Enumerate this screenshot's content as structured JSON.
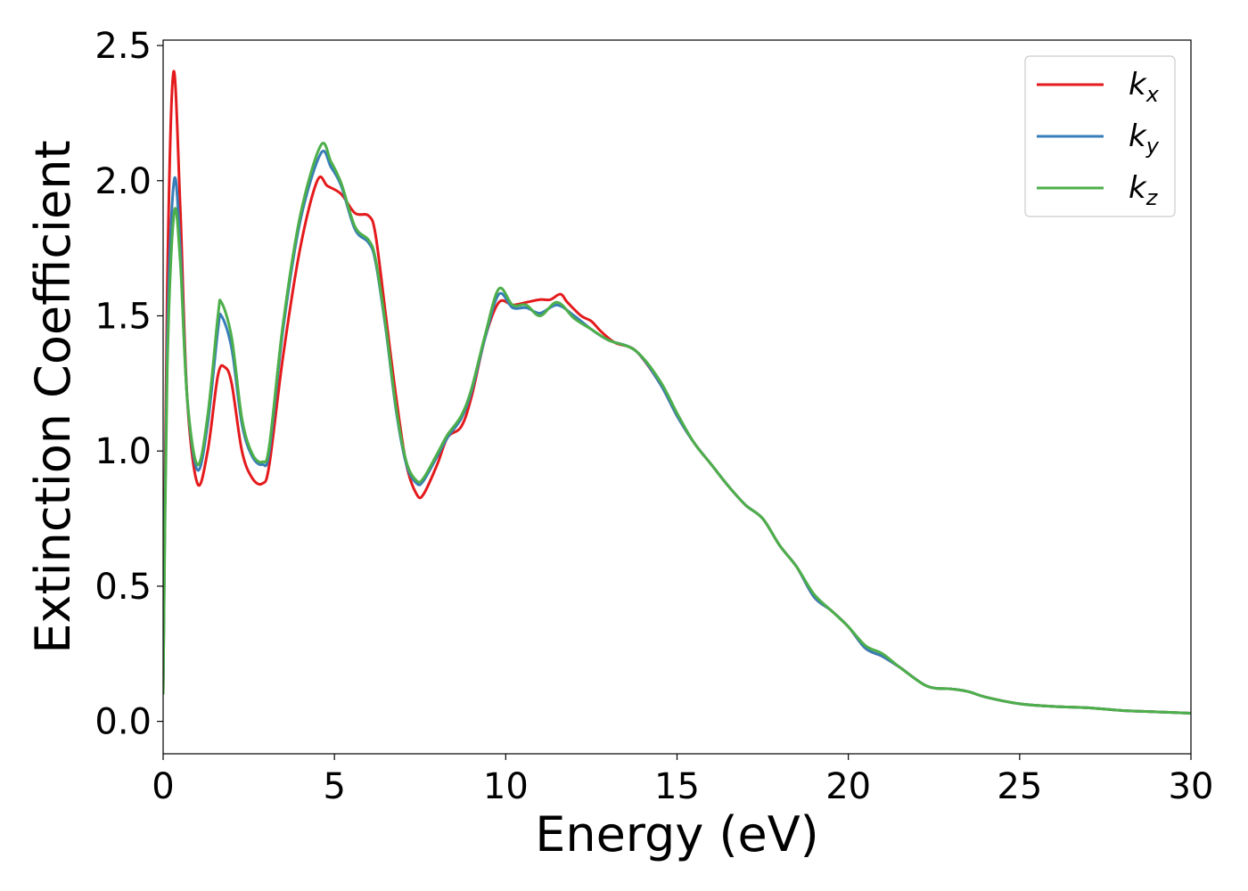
{
  "chart_data": {
    "type": "line",
    "title": "",
    "xlabel": "Energy (eV)",
    "ylabel": "Extinction Coefficient",
    "xlim": [
      0,
      30
    ],
    "ylim": [
      -0.12,
      2.52
    ],
    "xticks": [
      0,
      5,
      10,
      15,
      20,
      25,
      30
    ],
    "xtick_labels": [
      "0",
      "5",
      "10",
      "15",
      "20",
      "25",
      "30"
    ],
    "yticks": [
      0.0,
      0.5,
      1.0,
      1.5,
      2.0,
      2.5
    ],
    "ytick_labels": [
      "0.0",
      "0.5",
      "1.0",
      "1.5",
      "2.0",
      "2.5"
    ],
    "grid": false,
    "legend_position": "top-right",
    "series": [
      {
        "legend_base": "k",
        "legend_sub": "x",
        "color": "#e41a1c",
        "points": [
          [
            0,
            0.1
          ],
          [
            0.12,
            1.6
          ],
          [
            0.3,
            2.4
          ],
          [
            0.5,
            1.9
          ],
          [
            0.7,
            1.2
          ],
          [
            1.0,
            0.88
          ],
          [
            1.3,
            1.0
          ],
          [
            1.6,
            1.28
          ],
          [
            1.8,
            1.31
          ],
          [
            2.0,
            1.25
          ],
          [
            2.3,
            1.0
          ],
          [
            2.6,
            0.9
          ],
          [
            2.9,
            0.88
          ],
          [
            3.1,
            0.95
          ],
          [
            3.5,
            1.35
          ],
          [
            4.0,
            1.75
          ],
          [
            4.5,
            2.0
          ],
          [
            4.8,
            1.98
          ],
          [
            5.2,
            1.95
          ],
          [
            5.6,
            1.88
          ],
          [
            6.0,
            1.87
          ],
          [
            6.2,
            1.8
          ],
          [
            6.5,
            1.5
          ],
          [
            6.8,
            1.2
          ],
          [
            7.1,
            0.95
          ],
          [
            7.4,
            0.84
          ],
          [
            7.6,
            0.84
          ],
          [
            8.0,
            0.95
          ],
          [
            8.3,
            1.05
          ],
          [
            8.7,
            1.09
          ],
          [
            9.0,
            1.2
          ],
          [
            9.4,
            1.42
          ],
          [
            9.8,
            1.55
          ],
          [
            10.2,
            1.54
          ],
          [
            10.6,
            1.55
          ],
          [
            11.0,
            1.56
          ],
          [
            11.3,
            1.56
          ],
          [
            11.6,
            1.58
          ],
          [
            11.8,
            1.55
          ],
          [
            12.2,
            1.5
          ],
          [
            12.5,
            1.48
          ],
          [
            12.8,
            1.44
          ],
          [
            13.2,
            1.4
          ],
          [
            13.8,
            1.37
          ],
          [
            14.5,
            1.25
          ],
          [
            15.0,
            1.13
          ],
          [
            15.5,
            1.03
          ],
          [
            16.0,
            0.95
          ],
          [
            16.5,
            0.87
          ],
          [
            17.0,
            0.8
          ],
          [
            17.5,
            0.75
          ],
          [
            18.0,
            0.65
          ],
          [
            18.5,
            0.57
          ],
          [
            19.0,
            0.46
          ],
          [
            19.5,
            0.41
          ],
          [
            20.0,
            0.35
          ],
          [
            20.5,
            0.27
          ],
          [
            21.0,
            0.24
          ],
          [
            21.5,
            0.2
          ],
          [
            22.3,
            0.13
          ],
          [
            23.0,
            0.12
          ],
          [
            23.5,
            0.11
          ],
          [
            24.0,
            0.09
          ],
          [
            25.0,
            0.065
          ],
          [
            26.0,
            0.055
          ],
          [
            27.0,
            0.05
          ],
          [
            28.0,
            0.04
          ],
          [
            29.0,
            0.035
          ],
          [
            30.0,
            0.03
          ]
        ]
      },
      {
        "legend_base": "k",
        "legend_sub": "y",
        "color": "#377eb8",
        "points": [
          [
            0,
            0.1
          ],
          [
            0.12,
            1.4
          ],
          [
            0.32,
            2.0
          ],
          [
            0.5,
            1.75
          ],
          [
            0.7,
            1.2
          ],
          [
            1.0,
            0.93
          ],
          [
            1.3,
            1.1
          ],
          [
            1.6,
            1.45
          ],
          [
            1.7,
            1.5
          ],
          [
            2.0,
            1.38
          ],
          [
            2.3,
            1.1
          ],
          [
            2.6,
            0.98
          ],
          [
            2.9,
            0.95
          ],
          [
            3.1,
            1.0
          ],
          [
            3.5,
            1.45
          ],
          [
            4.0,
            1.85
          ],
          [
            4.6,
            2.1
          ],
          [
            4.9,
            2.05
          ],
          [
            5.2,
            1.98
          ],
          [
            5.6,
            1.82
          ],
          [
            6.0,
            1.77
          ],
          [
            6.2,
            1.7
          ],
          [
            6.5,
            1.45
          ],
          [
            6.8,
            1.15
          ],
          [
            7.1,
            0.95
          ],
          [
            7.4,
            0.88
          ],
          [
            7.6,
            0.89
          ],
          [
            8.0,
            0.98
          ],
          [
            8.3,
            1.05
          ],
          [
            8.7,
            1.12
          ],
          [
            9.0,
            1.22
          ],
          [
            9.4,
            1.42
          ],
          [
            9.8,
            1.58
          ],
          [
            10.2,
            1.53
          ],
          [
            10.6,
            1.53
          ],
          [
            11.0,
            1.51
          ],
          [
            11.5,
            1.54
          ],
          [
            12.0,
            1.5
          ],
          [
            12.5,
            1.45
          ],
          [
            13.0,
            1.41
          ],
          [
            13.8,
            1.37
          ],
          [
            14.5,
            1.25
          ],
          [
            15.0,
            1.13
          ],
          [
            15.5,
            1.03
          ],
          [
            16.0,
            0.95
          ],
          [
            16.5,
            0.87
          ],
          [
            17.0,
            0.8
          ],
          [
            17.5,
            0.75
          ],
          [
            18.0,
            0.65
          ],
          [
            18.5,
            0.57
          ],
          [
            19.0,
            0.46
          ],
          [
            19.5,
            0.41
          ],
          [
            20.0,
            0.35
          ],
          [
            20.5,
            0.27
          ],
          [
            21.0,
            0.24
          ],
          [
            21.5,
            0.2
          ],
          [
            22.3,
            0.13
          ],
          [
            23.0,
            0.12
          ],
          [
            23.5,
            0.11
          ],
          [
            24.0,
            0.09
          ],
          [
            25.0,
            0.065
          ],
          [
            26.0,
            0.055
          ],
          [
            27.0,
            0.05
          ],
          [
            28.0,
            0.04
          ],
          [
            29.0,
            0.035
          ],
          [
            30.0,
            0.03
          ]
        ]
      },
      {
        "legend_base": "k",
        "legend_sub": "z",
        "color": "#4daf4a",
        "points": [
          [
            0,
            0.1
          ],
          [
            0.12,
            1.3
          ],
          [
            0.32,
            1.88
          ],
          [
            0.5,
            1.7
          ],
          [
            0.7,
            1.2
          ],
          [
            1.0,
            0.95
          ],
          [
            1.3,
            1.13
          ],
          [
            1.6,
            1.5
          ],
          [
            1.7,
            1.55
          ],
          [
            2.0,
            1.42
          ],
          [
            2.3,
            1.12
          ],
          [
            2.6,
            0.99
          ],
          [
            2.9,
            0.96
          ],
          [
            3.1,
            1.02
          ],
          [
            3.5,
            1.47
          ],
          [
            4.0,
            1.87
          ],
          [
            4.6,
            2.13
          ],
          [
            4.9,
            2.07
          ],
          [
            5.2,
            1.99
          ],
          [
            5.6,
            1.83
          ],
          [
            6.0,
            1.78
          ],
          [
            6.2,
            1.71
          ],
          [
            6.5,
            1.46
          ],
          [
            6.8,
            1.16
          ],
          [
            7.1,
            0.96
          ],
          [
            7.4,
            0.89
          ],
          [
            7.6,
            0.9
          ],
          [
            8.0,
            0.99
          ],
          [
            8.3,
            1.06
          ],
          [
            8.7,
            1.13
          ],
          [
            9.0,
            1.23
          ],
          [
            9.4,
            1.43
          ],
          [
            9.8,
            1.6
          ],
          [
            10.2,
            1.54
          ],
          [
            10.6,
            1.54
          ],
          [
            11.0,
            1.5
          ],
          [
            11.5,
            1.55
          ],
          [
            12.0,
            1.49
          ],
          [
            12.5,
            1.45
          ],
          [
            13.0,
            1.41
          ],
          [
            13.8,
            1.37
          ],
          [
            14.5,
            1.26
          ],
          [
            15.0,
            1.14
          ],
          [
            15.5,
            1.03
          ],
          [
            16.0,
            0.95
          ],
          [
            16.5,
            0.87
          ],
          [
            17.0,
            0.8
          ],
          [
            17.5,
            0.75
          ],
          [
            18.0,
            0.65
          ],
          [
            18.5,
            0.57
          ],
          [
            19.0,
            0.47
          ],
          [
            19.5,
            0.41
          ],
          [
            20.0,
            0.35
          ],
          [
            20.5,
            0.28
          ],
          [
            21.0,
            0.25
          ],
          [
            21.5,
            0.2
          ],
          [
            22.3,
            0.13
          ],
          [
            23.0,
            0.12
          ],
          [
            23.5,
            0.11
          ],
          [
            24.0,
            0.09
          ],
          [
            25.0,
            0.065
          ],
          [
            26.0,
            0.055
          ],
          [
            27.0,
            0.05
          ],
          [
            28.0,
            0.04
          ],
          [
            29.0,
            0.035
          ],
          [
            30.0,
            0.03
          ]
        ]
      }
    ]
  }
}
